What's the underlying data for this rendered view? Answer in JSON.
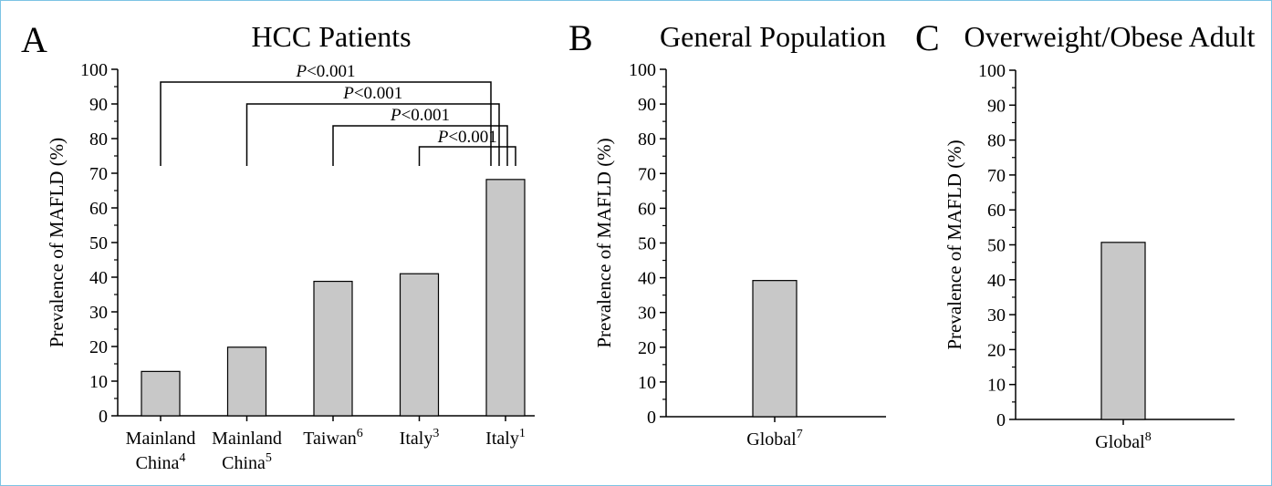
{
  "frame_color": "#7cc4e4",
  "bar_color": "#c8c8c8",
  "chart_data": [
    {
      "type": "bar",
      "panel": "A",
      "title": "HCC Patients",
      "ylabel": "Prevalence of MAFLD (%)",
      "ylim": [
        0,
        100
      ],
      "yticks": [
        "0",
        "10",
        "20",
        "30",
        "40",
        "50",
        "60",
        "70",
        "80",
        "90",
        "100"
      ],
      "categories": [
        {
          "lines": [
            "Mainland",
            "China"
          ],
          "sup": "4"
        },
        {
          "lines": [
            "Mainland",
            "China"
          ],
          "sup": "5"
        },
        {
          "lines": [
            "Taiwan"
          ],
          "sup": "6"
        },
        {
          "lines": [
            "Italy"
          ],
          "sup": "3"
        },
        {
          "lines": [
            "Italy"
          ],
          "sup": "1"
        }
      ],
      "values": [
        12.8,
        19.8,
        38.8,
        41.0,
        68.2
      ],
      "comparisons": [
        {
          "from": 0,
          "to": 4,
          "p_symbol": "P",
          "p_text": "<0.001"
        },
        {
          "from": 1,
          "to": 4,
          "p_symbol": "P",
          "p_text": "<0.001"
        },
        {
          "from": 2,
          "to": 4,
          "p_symbol": "P",
          "p_text": "<0.001"
        },
        {
          "from": 3,
          "to": 4,
          "p_symbol": "P",
          "p_text": "<0.001"
        }
      ]
    },
    {
      "type": "bar",
      "panel": "B",
      "title": "General Population",
      "ylabel": "Prevalence of MAFLD (%)",
      "ylim": [
        0,
        100
      ],
      "yticks": [
        "0",
        "10",
        "20",
        "30",
        "40",
        "50",
        "60",
        "70",
        "80",
        "90",
        "100"
      ],
      "categories": [
        {
          "lines": [
            "Global"
          ],
          "sup": "7"
        }
      ],
      "values": [
        39.2
      ],
      "comparisons": []
    },
    {
      "type": "bar",
      "panel": "C",
      "title": "Overweight/Obese Adult",
      "ylabel": "Prevalence of MAFLD (%)",
      "ylim": [
        0,
        100
      ],
      "yticks": [
        "0",
        "10",
        "20",
        "30",
        "40",
        "50",
        "60",
        "70",
        "80",
        "90",
        "100"
      ],
      "categories": [
        {
          "lines": [
            "Global"
          ],
          "sup": "8"
        }
      ],
      "values": [
        50.7
      ],
      "comparisons": []
    }
  ]
}
